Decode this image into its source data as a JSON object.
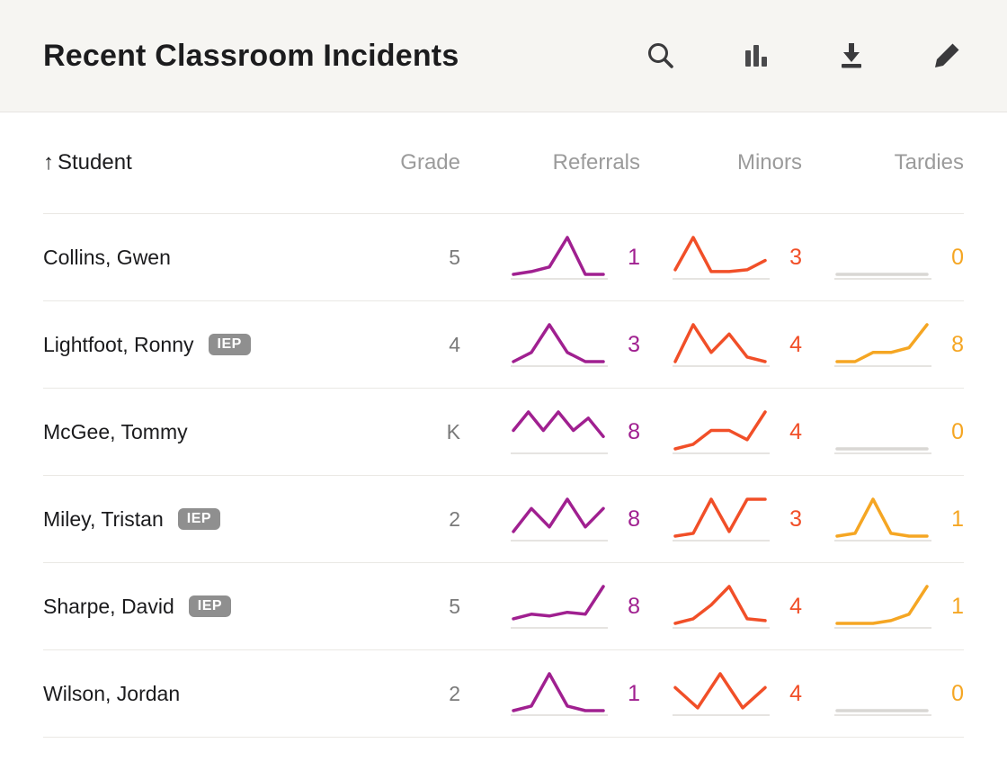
{
  "header": {
    "title": "Recent Classroom Incidents",
    "icons": [
      {
        "name": "search-icon"
      },
      {
        "name": "bar-chart-icon"
      },
      {
        "name": "download-icon"
      },
      {
        "name": "edit-icon"
      }
    ]
  },
  "table": {
    "sort_icon": "↑",
    "columns": {
      "student": "Student",
      "grade": "Grade",
      "referrals": "Referrals",
      "minors": "Minors",
      "tardies": "Tardies"
    },
    "colors": {
      "referrals": "#a02090",
      "minors": "#f14f28",
      "tardies": "#f5a623",
      "flat_line": "#d9d7d4",
      "baseline": "#e6e4e1"
    },
    "iep_label": "IEP",
    "rows": [
      {
        "student": "Collins, Gwen",
        "iep": false,
        "grade": "5",
        "referrals": {
          "value": 1,
          "points": [
            0,
            0.3,
            0.8,
            4,
            0,
            0
          ]
        },
        "minors": {
          "value": 3,
          "points": [
            0.5,
            4,
            0.3,
            0.3,
            0.5,
            1.5
          ]
        },
        "tardies": {
          "value": 0,
          "points": [
            0,
            0,
            0,
            0,
            0,
            0
          ]
        }
      },
      {
        "student": "Lightfoot, Ronny",
        "iep": true,
        "grade": "4",
        "referrals": {
          "value": 3,
          "points": [
            0,
            1,
            4,
            1,
            0,
            0
          ]
        },
        "minors": {
          "value": 4,
          "points": [
            0,
            4,
            1,
            3,
            0.5,
            0
          ]
        },
        "tardies": {
          "value": 8,
          "points": [
            0,
            0,
            1,
            1,
            1.5,
            4
          ]
        }
      },
      {
        "student": "McGee, Tommy",
        "iep": false,
        "grade": "K",
        "referrals": {
          "value": 8,
          "points": [
            1.5,
            3,
            1.5,
            3,
            1.5,
            2.5,
            1
          ]
        },
        "minors": {
          "value": 4,
          "points": [
            0,
            0.5,
            2,
            2,
            1,
            4
          ]
        },
        "tardies": {
          "value": 0,
          "points": [
            0,
            0,
            0,
            0,
            0,
            0
          ]
        }
      },
      {
        "student": "Miley, Tristan",
        "iep": true,
        "grade": "2",
        "referrals": {
          "value": 8,
          "points": [
            0.5,
            3,
            1,
            4,
            1,
            3
          ]
        },
        "minors": {
          "value": 3,
          "points": [
            0,
            0.3,
            4,
            0.5,
            4,
            4
          ]
        },
        "tardies": {
          "value": 1,
          "points": [
            0,
            0.3,
            4,
            0.3,
            0,
            0
          ]
        }
      },
      {
        "student": "Sharpe, David",
        "iep": true,
        "grade": "5",
        "referrals": {
          "value": 8,
          "points": [
            0.5,
            1,
            0.8,
            1.2,
            1,
            4
          ]
        },
        "minors": {
          "value": 4,
          "points": [
            0,
            0.5,
            2,
            4,
            0.5,
            0.3
          ]
        },
        "tardies": {
          "value": 1,
          "points": [
            0,
            0,
            0,
            0.3,
            1,
            4
          ]
        }
      },
      {
        "student": "Wilson, Jordan",
        "iep": false,
        "grade": "2",
        "referrals": {
          "value": 1,
          "points": [
            0,
            0.5,
            4,
            0.5,
            0,
            0
          ]
        },
        "minors": {
          "value": 4,
          "points": [
            2.5,
            0.3,
            4,
            0.3,
            2.5
          ]
        },
        "tardies": {
          "value": 0,
          "points": [
            0,
            0,
            0,
            0,
            0,
            0
          ]
        }
      }
    ]
  }
}
